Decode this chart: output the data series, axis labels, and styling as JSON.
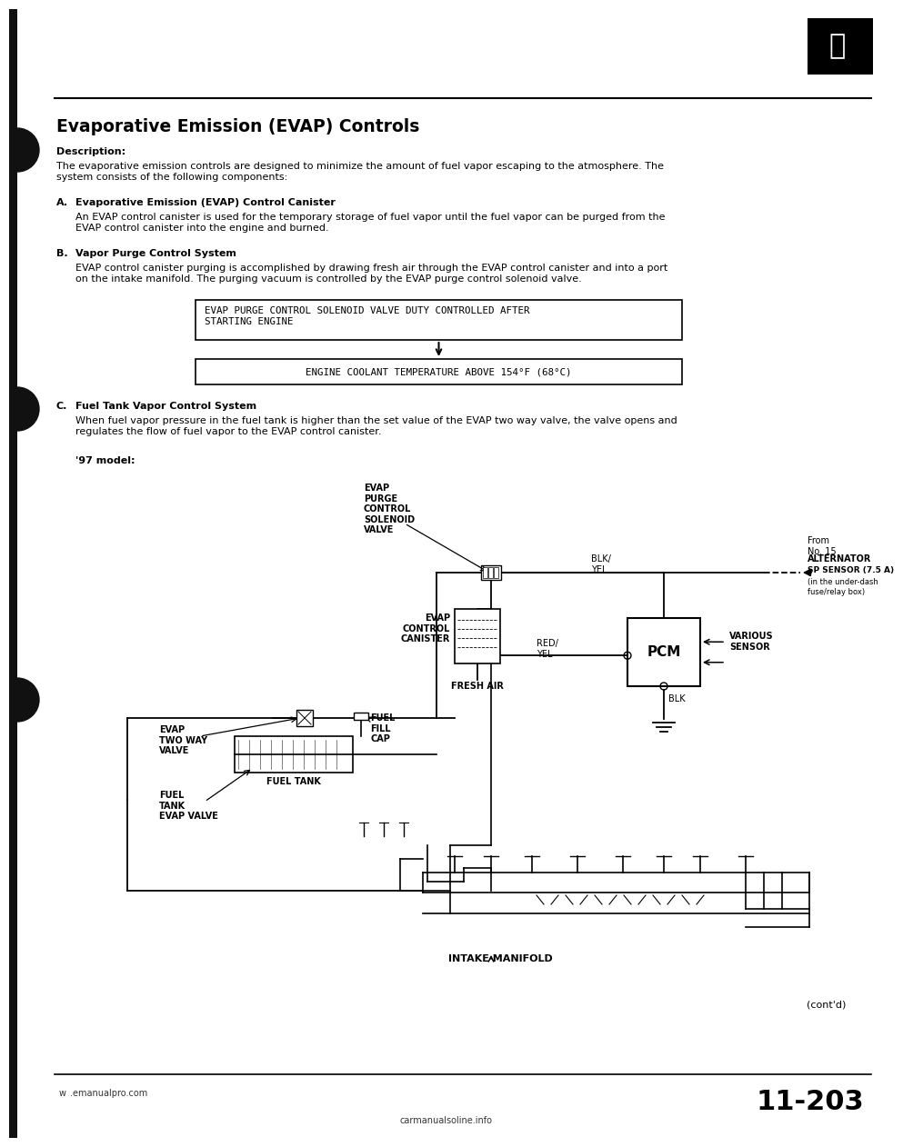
{
  "bg_color": "#ffffff",
  "page_bg": "#e8e8e0",
  "title": "Evaporative Emission (EVAP) Controls",
  "description_label": "Description:",
  "description_text": "The evaporative emission controls are designed to minimize the amount of fuel vapor escaping to the atmosphere. The\nsystem consists of the following components:",
  "section_A_letter": "A.",
  "section_A_title": "Evaporative Emission (EVAP) Control Canister",
  "section_A_text": "An EVAP control canister is used for the temporary storage of fuel vapor until the fuel vapor can be purged from the\nEVAP control canister into the engine and burned.",
  "section_B_letter": "B.",
  "section_B_title": "Vapor Purge Control System",
  "section_B_text": "EVAP control canister purging is accomplished by drawing fresh air through the EVAP control canister and into a port\non the intake manifold. The purging vacuum is controlled by the EVAP purge control solenoid valve.",
  "box1_text": "EVAP PURGE CONTROL SOLENOID VALVE DUTY CONTROLLED AFTER\nSTARTING ENGINE",
  "box2_text": "ENGINE COOLANT TEMPERATURE ABOVE 154°F (68°C)",
  "section_C_letter": "C.",
  "section_C_title": "Fuel Tank Vapor Control System",
  "section_C_text": "When fuel vapor pressure in the fuel tank is higher than the set value of the EVAP two way valve, the valve opens and\nregulates the flow of fuel vapor to the EVAP control canister.",
  "model_label": "'97 model:",
  "page_number": "11-203",
  "footer_left": "w  .emanualpro.com",
  "footer_center": "carmanualsoline.info",
  "cont_text": "(cont'd)",
  "label_evap_purge": "EVAP\nPURGE\nCONTROL\nSOLENOID\nVALVE",
  "label_evap_canister": "EVAP\nCONTROL\nCANISTER",
  "label_fresh_air": "FRESH AIR",
  "label_evap_two_way": "EVAP\nTWO WAY\nVALVE",
  "label_fuel_tank": "FUEL TANK",
  "label_fuel_fill_cap": "FUEL\nFILL\nCAP",
  "label_fuel_tank_evap": "FUEL\nTANK\nEVAP VALVE",
  "label_blk_yel": "BLK/\nYEL",
  "label_red_yel": "RED/\nYEL",
  "label_blk": "BLK",
  "label_from": "From\nNo. 15",
  "label_alternator": "ALTERNATOR\nSP SENSOR (7.5 A)",
  "label_under_dash": "(in the under-dash\nfuse/relay box)",
  "label_pcm": "PCM",
  "label_various": "VARIOUS\nSENSOR",
  "label_intake": "INTAKE MANIFOLD"
}
